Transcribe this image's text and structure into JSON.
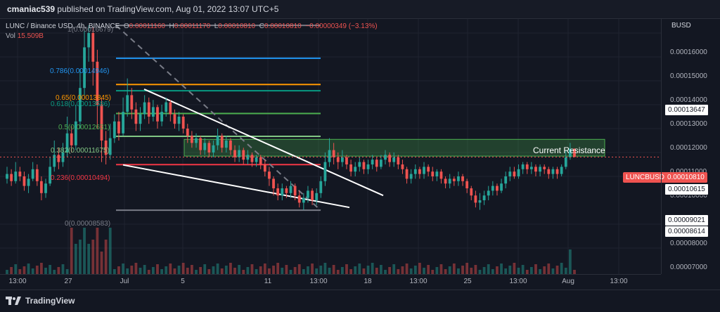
{
  "header": {
    "user": "cmaniac539",
    "published_text": "published on TradingView.com, Aug 01, 2022 13:07 UTC+5"
  },
  "legend": {
    "symbol": "LUNC / Binance USD, 4h, BINANCE",
    "o_label": "O",
    "o_value": "0.00011160",
    "h_label": "H",
    "h_value": "0.00011170",
    "l_label": "L",
    "l_value": "0.00010810",
    "c_label": "C",
    "c_value": "0.00010810",
    "change": "−0.00000349 (−3.13%)",
    "vol_label": "Vol",
    "vol_value": "15.509B"
  },
  "yaxis": {
    "currency": "BUSD",
    "ticks": [
      "0.00016000",
      "0.00015000",
      "0.00014000",
      "0.00013000",
      "0.00012000",
      "0.00011000",
      "0.00010000",
      "0.00008000",
      "0.00007000"
    ],
    "tags": {
      "upper_white": "0.00013647",
      "current": "0.00010810",
      "lower_white": "0.00010615",
      "bot1": "0.00009021",
      "bot2": "0.00008614"
    },
    "symbol_tag": "LUNCBUSD"
  },
  "xaxis": {
    "ticks": [
      "13:00",
      "27",
      "Jul",
      "5",
      "11",
      "13:00",
      "18",
      "13:00",
      "25",
      "13:00",
      "Aug",
      "13:00"
    ]
  },
  "fib": {
    "top": "1(0.00016679)",
    "l786": "0.786(0.00014946)",
    "l65": "0.65(0.00013845)",
    "l618": "0.618(0.00013586)",
    "l5": "0.5(0.00012631)",
    "l382": "0.382(0.00011675)",
    "l236": "0.236(0.00010494)",
    "zero": "0(0.00008583)"
  },
  "annotation": "Current Resistance",
  "footer": {
    "brand": "TradingView"
  },
  "colors": {
    "background": "#131722",
    "up": "#26a69a",
    "down": "#ef5350",
    "fib_786": "#2196f3",
    "fib_65": "#ff9800",
    "fib_618": "#089981",
    "fib_5": "#4caf50",
    "fib_382": "#81c784",
    "fib_236": "#f23645",
    "fib_gray": "#787b86",
    "resistance_zone": "#4caf50"
  },
  "chart_data": {
    "type": "candlestick",
    "symbol": "LUNC / Binance USD",
    "interval": "4h",
    "exchange": "BINANCE",
    "ylim": [
      6.6e-05,
      0.00017
    ],
    "fib_levels": [
      {
        "ratio": 1,
        "price": 0.00016679
      },
      {
        "ratio": 0.786,
        "price": 0.00014946
      },
      {
        "ratio": 0.65,
        "price": 0.00013845
      },
      {
        "ratio": 0.618,
        "price": 0.00013586
      },
      {
        "ratio": 0.5,
        "price": 0.00012631
      },
      {
        "ratio": 0.382,
        "price": 0.00011675
      },
      {
        "ratio": 0.236,
        "price": 0.00010494
      },
      {
        "ratio": 0,
        "price": 8.583e-05
      }
    ],
    "resistance_zone": [
      0.0001085,
      0.0001155
    ],
    "last_close": 0.0001081,
    "candles": [
      {
        "o": 9.9e-05,
        "c": 0.000101,
        "h": 0.000104,
        "l": 9.7e-05
      },
      {
        "o": 0.000101,
        "c": 9.8e-05,
        "h": 0.000103,
        "l": 9.6e-05
      },
      {
        "o": 9.8e-05,
        "c": 0.000102,
        "h": 0.000106,
        "l": 9.7e-05
      },
      {
        "o": 0.000102,
        "c": 0.0001,
        "h": 0.000104,
        "l": 9.8e-05
      },
      {
        "o": 0.0001,
        "c": 9.6e-05,
        "h": 0.000102,
        "l": 9.4e-05
      },
      {
        "o": 9.6e-05,
        "c": 9.9e-05,
        "h": 0.000101,
        "l": 9.3e-05
      },
      {
        "o": 9.9e-05,
        "c": 0.000103,
        "h": 0.000106,
        "l": 9.8e-05
      },
      {
        "o": 0.000103,
        "c": 9.8e-05,
        "h": 0.000105,
        "l": 9.6e-05
      },
      {
        "o": 9.8e-05,
        "c": 9.3e-05,
        "h": 0.0001,
        "l": 9e-05
      },
      {
        "o": 9.3e-05,
        "c": 9.7e-05,
        "h": 9.9e-05,
        "l": 9.1e-05
      },
      {
        "o": 9.7e-05,
        "c": 0.000104,
        "h": 0.000108,
        "l": 9.6e-05
      },
      {
        "o": 0.000104,
        "c": 0.000109,
        "h": 0.000115,
        "l": 0.000102
      },
      {
        "o": 0.000109,
        "c": 0.000106,
        "h": 0.000112,
        "l": 0.000103
      },
      {
        "o": 0.000106,
        "c": 0.00011,
        "h": 0.000114,
        "l": 0.000104
      },
      {
        "o": 0.00011,
        "c": 0.000118,
        "h": 0.000125,
        "l": 0.000108
      },
      {
        "o": 0.000118,
        "c": 0.000113,
        "h": 0.000121,
        "l": 0.00011
      },
      {
        "o": 0.000113,
        "c": 0.000123,
        "h": 0.00013,
        "l": 0.000111
      },
      {
        "o": 0.000123,
        "c": 0.000137,
        "h": 0.000145,
        "l": 0.00012
      },
      {
        "o": 0.000137,
        "c": 0.000154,
        "h": 0.000162,
        "l": 0.000134
      },
      {
        "o": 0.000154,
        "c": 0.00016,
        "h": 0.0001668,
        "l": 0.000148
      },
      {
        "o": 0.00016,
        "c": 0.000148,
        "h": 0.000165,
        "l": 0.000138
      },
      {
        "o": 0.000148,
        "c": 0.00013,
        "h": 0.000153,
        "l": 0.00012
      },
      {
        "o": 0.00013,
        "c": 0.000115,
        "h": 0.000133,
        "l": 0.000106
      },
      {
        "o": 0.000115,
        "c": 0.000109,
        "h": 0.000119,
        "l": 0.000105
      },
      {
        "o": 0.000109,
        "c": 0.000116,
        "h": 0.000122,
        "l": 0.000107
      },
      {
        "o": 0.000116,
        "c": 0.000123,
        "h": 0.000126,
        "l": 0.000114
      },
      {
        "o": 0.000123,
        "c": 0.000118,
        "h": 0.000127,
        "l": 0.000115
      },
      {
        "o": 0.000118,
        "c": 0.000127,
        "h": 0.000133,
        "l": 0.000117
      },
      {
        "o": 0.000127,
        "c": 0.000134,
        "h": 0.000141,
        "l": 0.000125
      },
      {
        "o": 0.000134,
        "c": 0.000128,
        "h": 0.000137,
        "l": 0.000124
      },
      {
        "o": 0.000128,
        "c": 0.000122,
        "h": 0.000131,
        "l": 0.000119
      },
      {
        "o": 0.000122,
        "c": 0.000126,
        "h": 0.000129,
        "l": 0.000119
      },
      {
        "o": 0.000126,
        "c": 0.000131,
        "h": 0.000134,
        "l": 0.000124
      },
      {
        "o": 0.000131,
        "c": 0.000125,
        "h": 0.000133,
        "l": 0.000122
      },
      {
        "o": 0.000125,
        "c": 0.000129,
        "h": 0.000132,
        "l": 0.000123
      },
      {
        "o": 0.000129,
        "c": 0.000123,
        "h": 0.00013,
        "l": 0.00012
      },
      {
        "o": 0.000123,
        "c": 0.000127,
        "h": 0.00013,
        "l": 0.000121
      },
      {
        "o": 0.000127,
        "c": 0.000131,
        "h": 0.000133,
        "l": 0.000125
      },
      {
        "o": 0.000131,
        "c": 0.000126,
        "h": 0.000132,
        "l": 0.000123
      },
      {
        "o": 0.000126,
        "c": 0.000122,
        "h": 0.000128,
        "l": 0.00012
      },
      {
        "o": 0.000122,
        "c": 0.000125,
        "h": 0.000127,
        "l": 0.000119
      },
      {
        "o": 0.000125,
        "c": 0.00012,
        "h": 0.000126,
        "l": 0.000118
      },
      {
        "o": 0.00012,
        "c": 0.000117,
        "h": 0.000122,
        "l": 0.000114
      },
      {
        "o": 0.000117,
        "c": 0.000114,
        "h": 0.000119,
        "l": 0.000112
      },
      {
        "o": 0.000114,
        "c": 0.000116,
        "h": 0.000118,
        "l": 0.000112
      },
      {
        "o": 0.000116,
        "c": 0.000111,
        "h": 0.000117,
        "l": 0.000109
      },
      {
        "o": 0.000111,
        "c": 0.000114,
        "h": 0.000116,
        "l": 0.000109
      },
      {
        "o": 0.000114,
        "c": 0.00011,
        "h": 0.000115,
        "l": 0.000108
      },
      {
        "o": 0.00011,
        "c": 0.000113,
        "h": 0.000115,
        "l": 0.000108
      },
      {
        "o": 0.000113,
        "c": 0.000117,
        "h": 0.00012,
        "l": 0.000111
      },
      {
        "o": 0.000117,
        "c": 0.000112,
        "h": 0.000118,
        "l": 0.00011
      },
      {
        "o": 0.000112,
        "c": 0.000115,
        "h": 0.000117,
        "l": 0.00011
      },
      {
        "o": 0.000115,
        "c": 0.000111,
        "h": 0.000116,
        "l": 0.000109
      },
      {
        "o": 0.000111,
        "c": 0.000108,
        "h": 0.000113,
        "l": 0.000106
      },
      {
        "o": 0.000108,
        "c": 0.000111,
        "h": 0.000113,
        "l": 0.000106
      },
      {
        "o": 0.000111,
        "c": 0.000107,
        "h": 0.000112,
        "l": 0.000105
      },
      {
        "o": 0.000107,
        "c": 0.000109,
        "h": 0.000111,
        "l": 0.000105
      },
      {
        "o": 0.000109,
        "c": 0.000106,
        "h": 0.00011,
        "l": 0.000104
      },
      {
        "o": 0.000106,
        "c": 0.000108,
        "h": 0.000109,
        "l": 0.000104
      },
      {
        "o": 0.000108,
        "c": 0.000105,
        "h": 0.000109,
        "l": 0.000103
      },
      {
        "o": 0.000105,
        "c": 0.000102,
        "h": 0.000107,
        "l": 0.0001
      },
      {
        "o": 0.000102,
        "c": 9.9e-05,
        "h": 0.000104,
        "l": 9.6e-05
      },
      {
        "o": 9.9e-05,
        "c": 9.5e-05,
        "h": 0.0001,
        "l": 9.2e-05
      },
      {
        "o": 9.5e-05,
        "c": 9.2e-05,
        "h": 9.7e-05,
        "l": 9e-05
      },
      {
        "o": 9.2e-05,
        "c": 9.5e-05,
        "h": 9.7e-05,
        "l": 9e-05
      },
      {
        "o": 9.5e-05,
        "c": 9.3e-05,
        "h": 9.6e-05,
        "l": 9.1e-05
      },
      {
        "o": 9.3e-05,
        "c": 9.6e-05,
        "h": 9.8e-05,
        "l": 9.1e-05
      },
      {
        "o": 9.6e-05,
        "c": 9.2e-05,
        "h": 9.7e-05,
        "l": 9e-05
      },
      {
        "o": 9.2e-05,
        "c": 8.9e-05,
        "h": 9.4e-05,
        "l": 8.7e-05
      },
      {
        "o": 8.9e-05,
        "c": 9.1e-05,
        "h": 9.3e-05,
        "l": 8.6e-05
      },
      {
        "o": 9.1e-05,
        "c": 9.4e-05,
        "h": 9.6e-05,
        "l": 8.9e-05
      },
      {
        "o": 9.4e-05,
        "c": 9e-05,
        "h": 9.5e-05,
        "l": 8.8e-05
      },
      {
        "o": 9e-05,
        "c": 9.3e-05,
        "h": 9.5e-05,
        "l": 8.8e-05
      },
      {
        "o": 9.3e-05,
        "c": 9.8e-05,
        "h": 0.0001,
        "l": 9.1e-05
      },
      {
        "o": 9.8e-05,
        "c": 0.000106,
        "h": 0.00011,
        "l": 9.6e-05
      },
      {
        "o": 0.000106,
        "c": 0.000111,
        "h": 0.000116,
        "l": 0.000104
      },
      {
        "o": 0.000111,
        "c": 0.000108,
        "h": 0.000114,
        "l": 0.000105
      },
      {
        "o": 0.000108,
        "c": 0.000106,
        "h": 0.00011,
        "l": 0.000103
      },
      {
        "o": 0.000106,
        "c": 0.000108,
        "h": 0.000111,
        "l": 0.000104
      },
      {
        "o": 0.000108,
        "c": 0.000105,
        "h": 0.000109,
        "l": 0.000103
      },
      {
        "o": 0.000105,
        "c": 0.000102,
        "h": 0.000107,
        "l": 0.0001
      },
      {
        "o": 0.000102,
        "c": 0.000104,
        "h": 0.000106,
        "l": 0.0001
      },
      {
        "o": 0.000104,
        "c": 0.000106,
        "h": 0.000108,
        "l": 0.000102
      },
      {
        "o": 0.000106,
        "c": 0.000103,
        "h": 0.000107,
        "l": 0.000101
      },
      {
        "o": 0.000103,
        "c": 0.000105,
        "h": 0.000107,
        "l": 0.000101
      },
      {
        "o": 0.000105,
        "c": 0.000107,
        "h": 0.000109,
        "l": 0.000103
      },
      {
        "o": 0.000107,
        "c": 0.000104,
        "h": 0.000108,
        "l": 0.000102
      },
      {
        "o": 0.000104,
        "c": 0.000107,
        "h": 0.000109,
        "l": 0.000103
      },
      {
        "o": 0.000107,
        "c": 0.000109,
        "h": 0.000111,
        "l": 0.000105
      },
      {
        "o": 0.000109,
        "c": 0.000106,
        "h": 0.00011,
        "l": 0.000104
      },
      {
        "o": 0.000106,
        "c": 0.000108,
        "h": 0.00011,
        "l": 0.000104
      },
      {
        "o": 0.000108,
        "c": 0.000105,
        "h": 0.000109,
        "l": 0.000103
      },
      {
        "o": 0.000105,
        "c": 0.000103,
        "h": 0.000107,
        "l": 0.000101
      },
      {
        "o": 0.000103,
        "c": 9.9e-05,
        "h": 0.000104,
        "l": 9.7e-05
      },
      {
        "o": 9.9e-05,
        "c": 0.000101,
        "h": 0.000103,
        "l": 9.7e-05
      },
      {
        "o": 0.000101,
        "c": 0.000103,
        "h": 0.000105,
        "l": 9.9e-05
      },
      {
        "o": 0.000103,
        "c": 0.000101,
        "h": 0.000104,
        "l": 9.9e-05
      },
      {
        "o": 0.000101,
        "c": 0.000104,
        "h": 0.000106,
        "l": 9.9e-05
      },
      {
        "o": 0.000104,
        "c": 0.000102,
        "h": 0.000105,
        "l": 0.0001
      },
      {
        "o": 0.000102,
        "c": 0.0001,
        "h": 0.000104,
        "l": 9.8e-05
      },
      {
        "o": 0.0001,
        "c": 0.000102,
        "h": 0.000103,
        "l": 9.8e-05
      },
      {
        "o": 0.000102,
        "c": 9.9e-05,
        "h": 0.000103,
        "l": 9.7e-05
      },
      {
        "o": 9.9e-05,
        "c": 9.7e-05,
        "h": 0.0001,
        "l": 9.5e-05
      },
      {
        "o": 9.7e-05,
        "c": 9.9e-05,
        "h": 0.000101,
        "l": 9.5e-05
      },
      {
        "o": 9.9e-05,
        "c": 9.8e-05,
        "h": 0.0001,
        "l": 9.6e-05
      },
      {
        "o": 9.8e-05,
        "c": 0.0001,
        "h": 0.000102,
        "l": 9.6e-05
      },
      {
        "o": 0.0001,
        "c": 9.8e-05,
        "h": 0.000101,
        "l": 9.6e-05
      },
      {
        "o": 9.8e-05,
        "c": 9.5e-05,
        "h": 9.9e-05,
        "l": 9.3e-05
      },
      {
        "o": 9.5e-05,
        "c": 9.2e-05,
        "h": 9.6e-05,
        "l": 9e-05
      },
      {
        "o": 9.2e-05,
        "c": 8.9e-05,
        "h": 9.4e-05,
        "l": 8.7e-05
      },
      {
        "o": 8.9e-05,
        "c": 9e-05,
        "h": 9.3e-05,
        "l": 8.6e-05
      },
      {
        "o": 9e-05,
        "c": 9.2e-05,
        "h": 9.4e-05,
        "l": 8.8e-05
      },
      {
        "o": 9.2e-05,
        "c": 9.4e-05,
        "h": 9.6e-05,
        "l": 9e-05
      },
      {
        "o": 9.4e-05,
        "c": 9.6e-05,
        "h": 9.8e-05,
        "l": 9.2e-05
      },
      {
        "o": 9.6e-05,
        "c": 9.4e-05,
        "h": 9.7e-05,
        "l": 9.2e-05
      },
      {
        "o": 9.4e-05,
        "c": 9.7e-05,
        "h": 9.9e-05,
        "l": 9.3e-05
      },
      {
        "o": 9.7e-05,
        "c": 0.0001,
        "h": 0.000102,
        "l": 9.5e-05
      },
      {
        "o": 0.0001,
        "c": 0.000102,
        "h": 0.000104,
        "l": 9.8e-05
      },
      {
        "o": 0.000102,
        "c": 0.0001,
        "h": 0.000104,
        "l": 9.9e-05
      },
      {
        "o": 0.0001,
        "c": 0.000103,
        "h": 0.000105,
        "l": 9.9e-05
      },
      {
        "o": 0.000103,
        "c": 0.000105,
        "h": 0.000106,
        "l": 0.000101
      },
      {
        "o": 0.000105,
        "c": 0.000103,
        "h": 0.000106,
        "l": 0.000101
      },
      {
        "o": 0.000103,
        "c": 0.000104,
        "h": 0.000106,
        "l": 0.000101
      },
      {
        "o": 0.000104,
        "c": 0.000102,
        "h": 0.000105,
        "l": 0.0001
      },
      {
        "o": 0.000102,
        "c": 0.000104,
        "h": 0.000105,
        "l": 0.0001
      },
      {
        "o": 0.000104,
        "c": 0.000103,
        "h": 0.000105,
        "l": 0.000101
      },
      {
        "o": 0.000103,
        "c": 0.000101,
        "h": 0.000104,
        "l": 9.9e-05
      },
      {
        "o": 0.000101,
        "c": 0.000103,
        "h": 0.000104,
        "l": 9.9e-05
      },
      {
        "o": 0.000103,
        "c": 0.000101,
        "h": 0.000104,
        "l": 9.9e-05
      },
      {
        "o": 0.000101,
        "c": 0.000104,
        "h": 0.000105,
        "l": 0.0001
      },
      {
        "o": 0.000104,
        "c": 0.000108,
        "h": 0.000111,
        "l": 0.000103
      },
      {
        "o": 0.000108,
        "c": 0.0001116,
        "h": 0.000114,
        "l": 0.000107
      },
      {
        "o": 0.0001116,
        "c": 0.0001081,
        "h": 0.0001117,
        "l": 0.0001081
      }
    ],
    "volume_scale": "relative"
  }
}
